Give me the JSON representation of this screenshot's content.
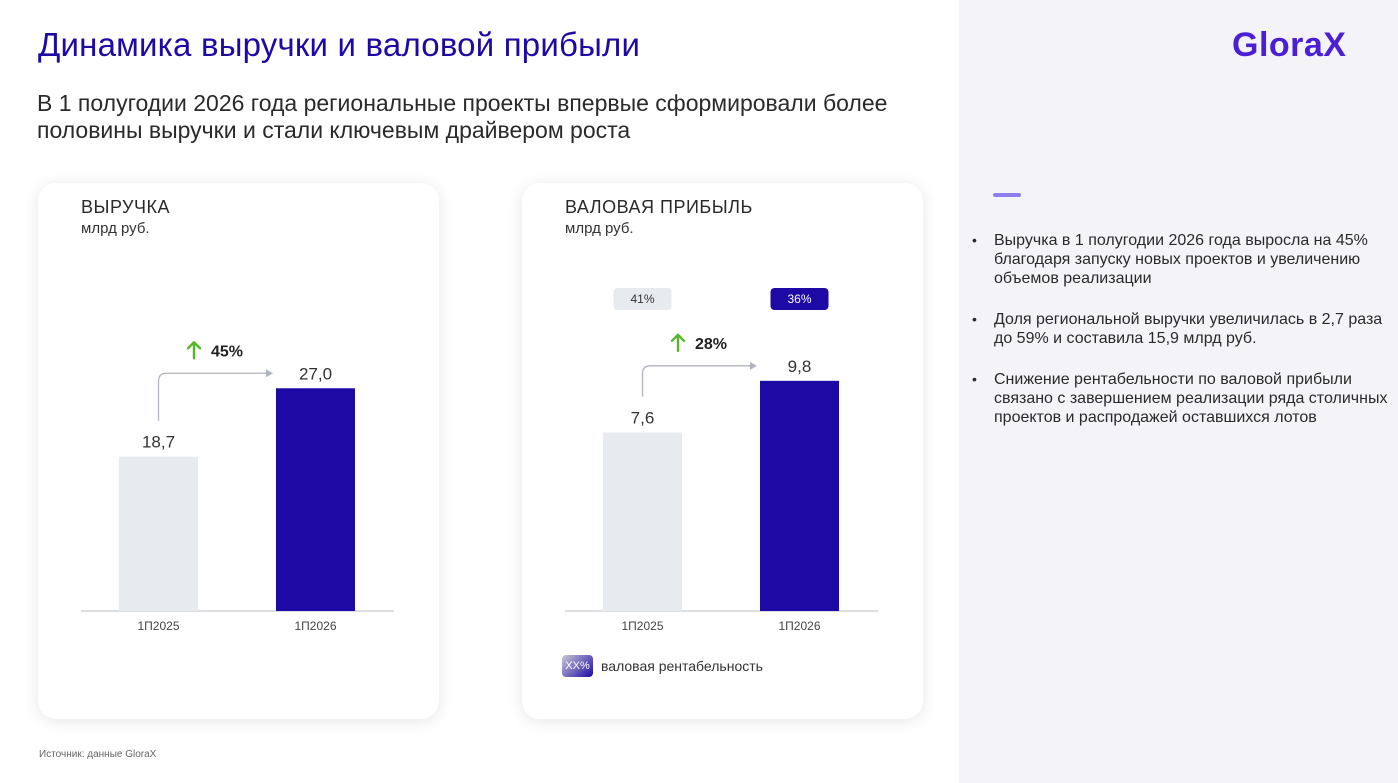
{
  "title": "Динамика выручки и валовой прибыли",
  "subtitle": "В 1 полугодии 2026 года региональные проекты впервые сформировали более половины выручки и стали ключевым драйвером роста",
  "logo": "GloraX",
  "colors": {
    "accent": "#1d0aa5",
    "prev_bar": "#e7eaee",
    "growth_arrow": "#57b52a",
    "logo": "#4a1fd6"
  },
  "chart_data": [
    {
      "type": "bar",
      "title": "ВЫРУЧКА",
      "unit": "млрд руб.",
      "categories": [
        "1П2025",
        "1П2026"
      ],
      "values": [
        18.7,
        27.0
      ],
      "value_labels": [
        "18,7",
        "27,0"
      ],
      "growth_label": "45%",
      "ylim": [
        0,
        40
      ]
    },
    {
      "type": "bar",
      "title": "ВАЛОВАЯ ПРИБЫЛЬ",
      "unit": "млрд руб.",
      "categories": [
        "1П2025",
        "1П2026"
      ],
      "values": [
        7.6,
        9.8
      ],
      "value_labels": [
        "7,6",
        "9,8"
      ],
      "growth_label": "28%",
      "margins": [
        "41%",
        "36%"
      ],
      "ylim": [
        0,
        14.05
      ]
    }
  ],
  "legend": {
    "swatch_label": "XX%",
    "label": "валовая рентабельность"
  },
  "source": "Источник: данные GloraX",
  "bullets": [
    "Выручка в 1 полугодии 2026 года выросла на 45% благодаря запуску новых проектов и увеличению объемов реализации",
    "Доля региональной выручки увеличилась в 2,7 раза до 59% и составила 15,9 млрд руб.",
    "Снижение рентабельности по валовой прибыли связано с завершением реализации ряда столичных проектов и распродажей оставшихся лотов"
  ]
}
